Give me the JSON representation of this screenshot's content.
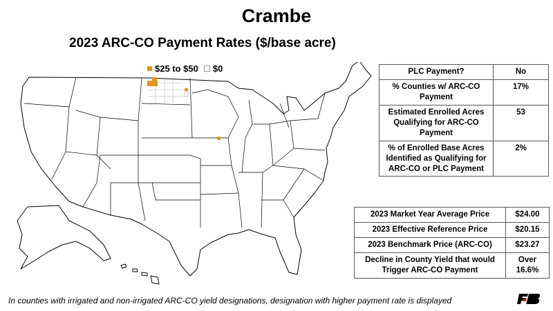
{
  "title": "Crambe",
  "subtitle": "2023 ARC-CO Payment Rates ($/base acre)",
  "legend": [
    {
      "label": "$25 to $50",
      "color": "#e3961f"
    },
    {
      "label": "$0",
      "color": "#ffffff"
    }
  ],
  "summary_table": [
    {
      "label": "PLC Payment?",
      "value": "No"
    },
    {
      "label": "% Counties w/ ARC-CO Payment",
      "value": "17%"
    },
    {
      "label": "Estimated Enrolled Acres Qualifying for ARC-CO Payment",
      "value": "53"
    },
    {
      "label": "% of Enrolled Base Acres Identified as Qualifying for ARC-CO or PLC Payment",
      "value": "2%"
    }
  ],
  "price_table": [
    {
      "label": "2023 Market Year Average Price",
      "value": "$24.00"
    },
    {
      "label": "2023 Effective Reference Price",
      "value": "$20.15"
    },
    {
      "label": "2023 Benchmark Price (ARC-CO)",
      "value": "$23.27"
    },
    {
      "label": "Decline in County Yield that would Trigger ARC-CO Payment",
      "value": "Over 16.6%"
    }
  ],
  "footnote": "In counties with irrigated and non-irrigated ARC-CO yield designations, designation with higher payment rate is displayed",
  "logo_text": "FB"
}
